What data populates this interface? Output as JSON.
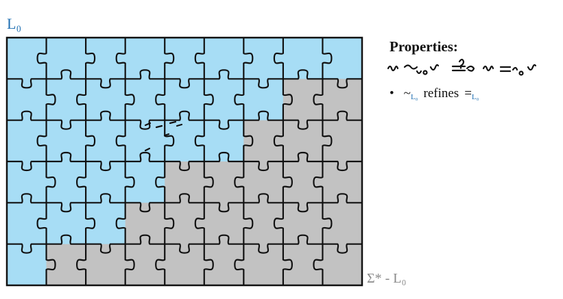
{
  "labels": {
    "language": "L₀",
    "complement": "Σ* - L₀"
  },
  "properties": {
    "title": "Properties:",
    "bullet": {
      "tilde_symbol": "~",
      "tilde_subscript": "L₀",
      "verb": "refines",
      "eq_symbol": "=",
      "eq_subscript": "L₀"
    }
  },
  "colors": {
    "language_region": "#a7ddf5",
    "complement_region": "#c2c2c2",
    "outline": "#111111",
    "label_blue": "#1f6fb2",
    "label_gray": "#8a8a8a"
  }
}
